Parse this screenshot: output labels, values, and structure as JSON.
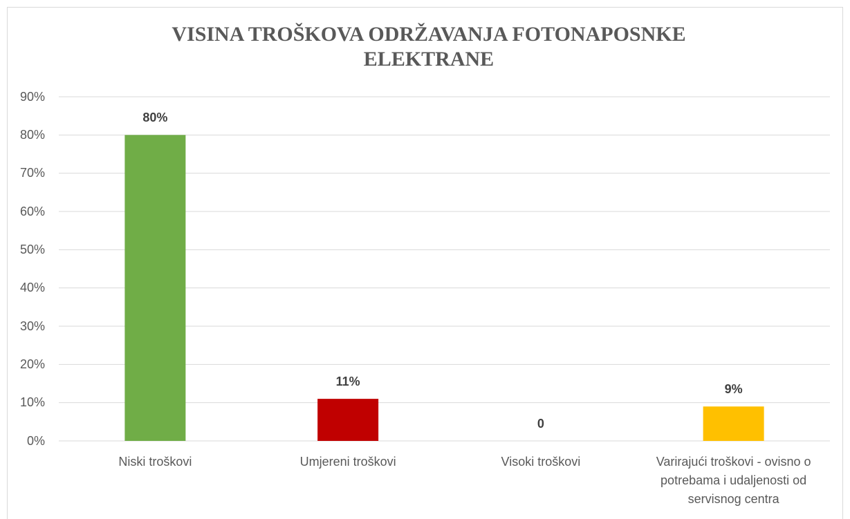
{
  "chart_data": {
    "type": "bar",
    "title": "VISINA TROŠKOVA ODRŽAVANJA FOTONAPOSNKE ELEKTRANE",
    "categories": [
      "Niski troškovi",
      "Umjereni troškovi",
      "Visoki troškovi",
      "Varirajući troškovi - ovisno o potrebama i udaljenosti od servisnog centra"
    ],
    "values": [
      80,
      11,
      0,
      9
    ],
    "value_labels": [
      "80%",
      "11%",
      "0",
      "9%"
    ],
    "colors": [
      "#70ad47",
      "#c00000",
      "#a5a5a5",
      "#ffc000"
    ],
    "ylim": [
      0,
      90
    ],
    "yticks": [
      {
        "value": 0,
        "label": "0%"
      },
      {
        "value": 10,
        "label": "10%"
      },
      {
        "value": 20,
        "label": "20%"
      },
      {
        "value": 30,
        "label": "30%"
      },
      {
        "value": 40,
        "label": "40%"
      },
      {
        "value": 50,
        "label": "50%"
      },
      {
        "value": 60,
        "label": "60%"
      },
      {
        "value": 70,
        "label": "70%"
      },
      {
        "value": 80,
        "label": "80%"
      },
      {
        "value": 90,
        "label": "90%"
      }
    ],
    "grid": true
  }
}
